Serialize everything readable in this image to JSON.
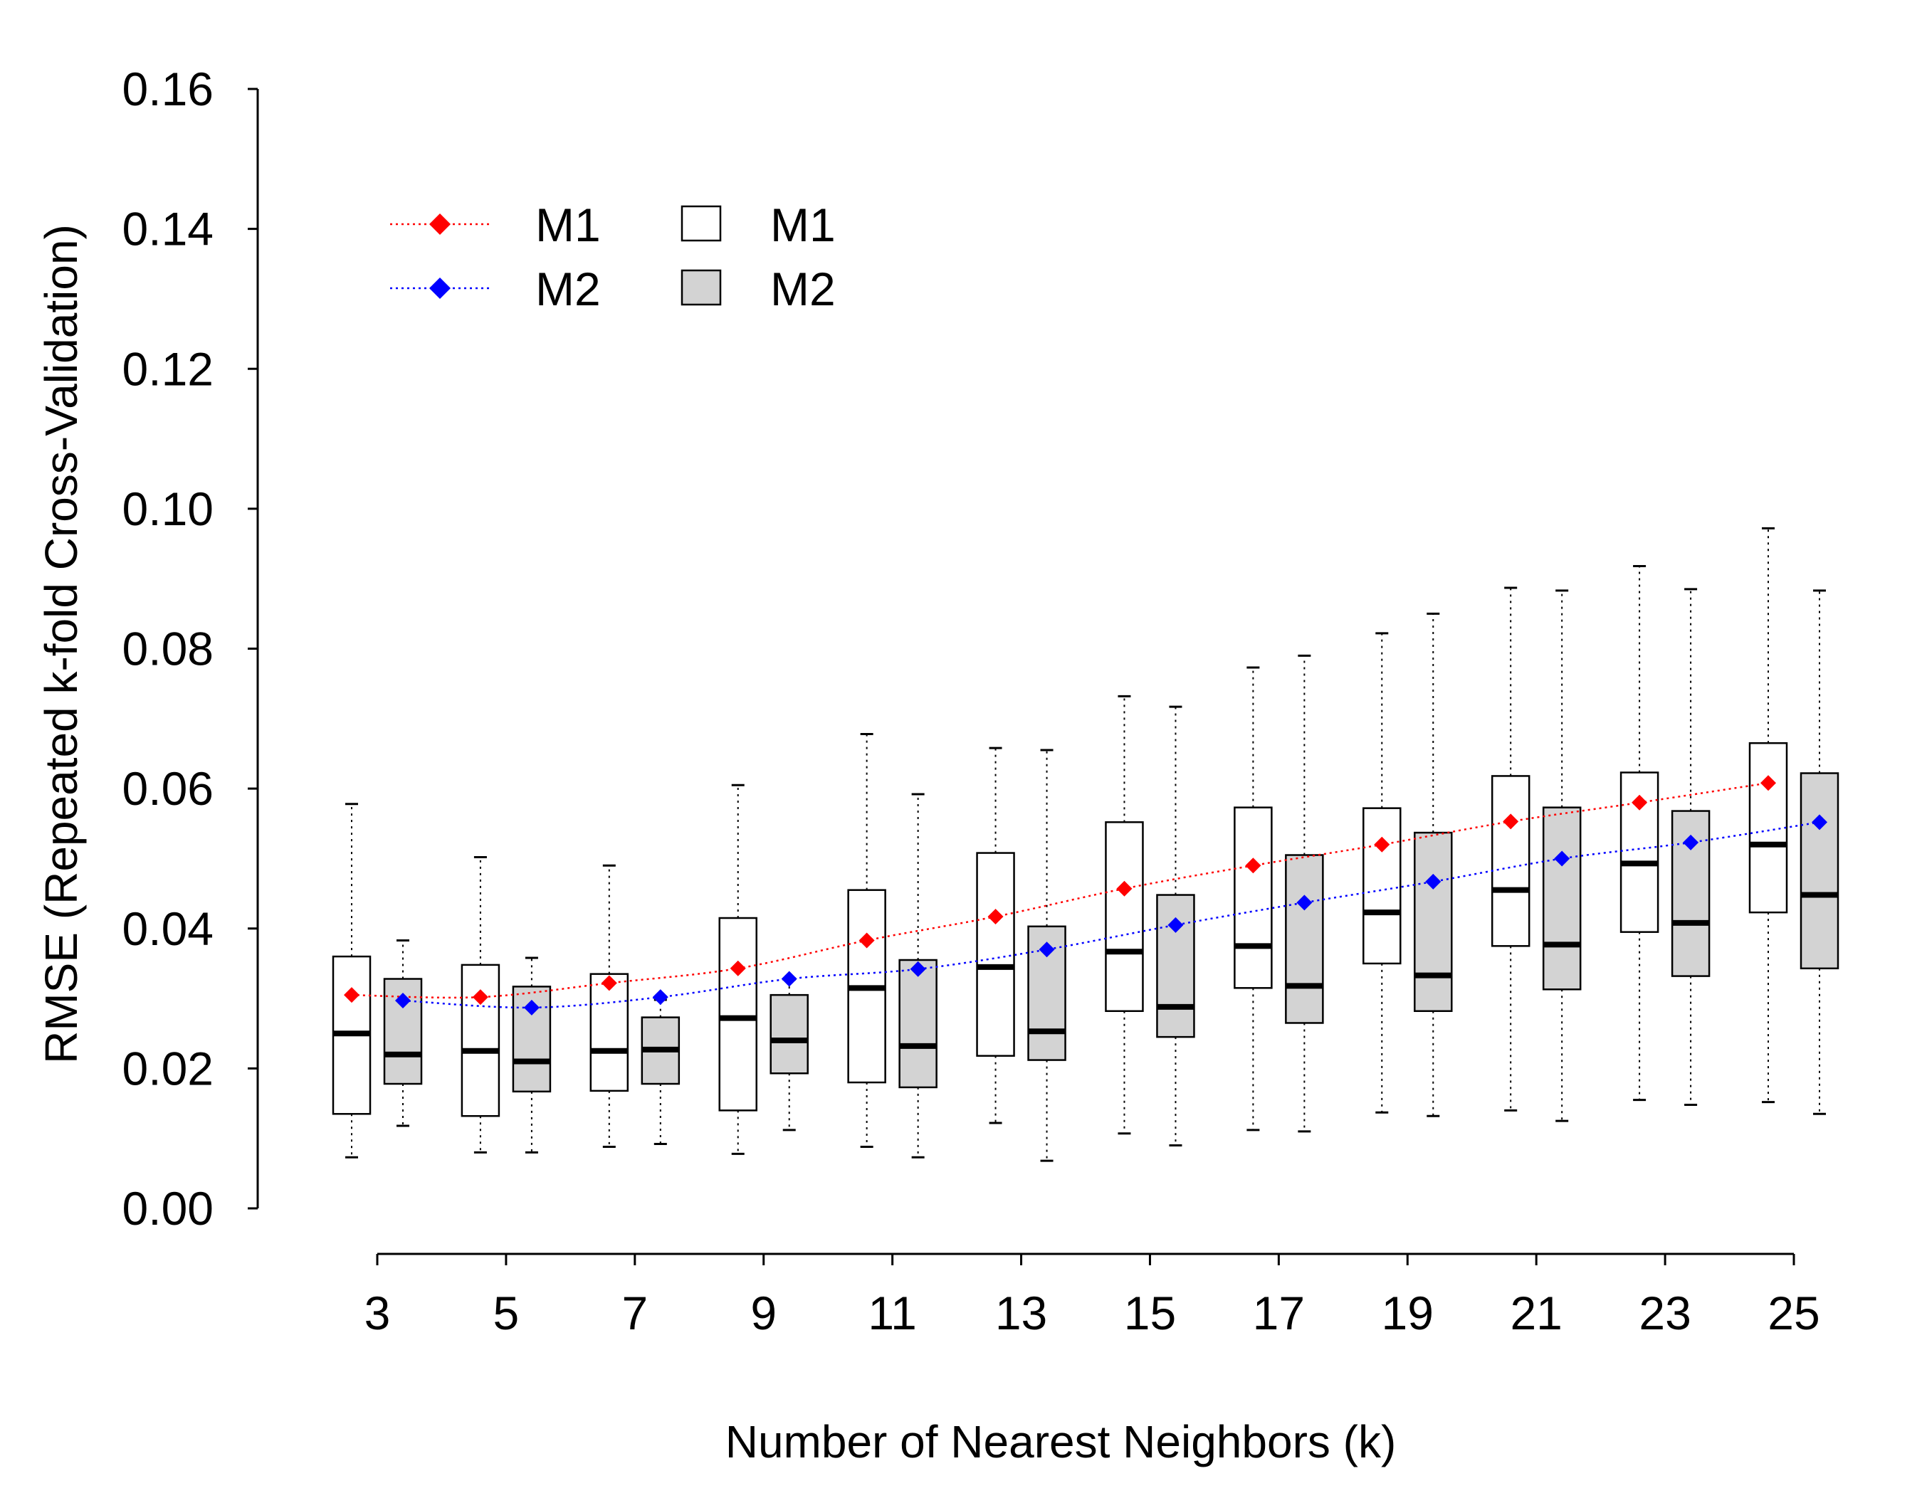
{
  "chart_data": {
    "type": "box",
    "title": "",
    "xlabel": "Number of Nearest Neighbors (k)",
    "ylabel": "RMSE (Repeated k-fold Cross-Validation)",
    "ylim": [
      0,
      0.16
    ],
    "yticks": [
      "0.00",
      "0.02",
      "0.04",
      "0.06",
      "0.08",
      "0.10",
      "0.12",
      "0.14",
      "0.16"
    ],
    "x_categories": [
      "3",
      "5",
      "7",
      "9",
      "11",
      "13",
      "15",
      "17",
      "19",
      "21",
      "23",
      "25"
    ],
    "grid": false,
    "legend_position": "top-left",
    "legend": {
      "lines": [
        {
          "label": "M1",
          "color": "#ff0000"
        },
        {
          "label": "M2",
          "color": "#0000ff"
        }
      ],
      "boxes": [
        {
          "label": "M1",
          "fill": "#ffffff"
        },
        {
          "label": "M2",
          "fill": "#d3d3d3"
        }
      ]
    },
    "box_series": [
      {
        "name": "M1",
        "fill": "#ffffff",
        "boxes": [
          {
            "k": 3,
            "whisker_low": 0.0073,
            "q1": 0.0135,
            "median": 0.025,
            "q3": 0.036,
            "whisker_high": 0.0578
          },
          {
            "k": 5,
            "whisker_low": 0.008,
            "q1": 0.0132,
            "median": 0.0225,
            "q3": 0.0348,
            "whisker_high": 0.0502
          },
          {
            "k": 7,
            "whisker_low": 0.0088,
            "q1": 0.0168,
            "median": 0.0225,
            "q3": 0.0335,
            "whisker_high": 0.049
          },
          {
            "k": 9,
            "whisker_low": 0.0078,
            "q1": 0.014,
            "median": 0.0272,
            "q3": 0.0415,
            "whisker_high": 0.0605
          },
          {
            "k": 11,
            "whisker_low": 0.0088,
            "q1": 0.018,
            "median": 0.0315,
            "q3": 0.0455,
            "whisker_high": 0.0678
          },
          {
            "k": 13,
            "whisker_low": 0.0122,
            "q1": 0.0218,
            "median": 0.0345,
            "q3": 0.0508,
            "whisker_high": 0.0658
          },
          {
            "k": 15,
            "whisker_low": 0.0107,
            "q1": 0.0282,
            "median": 0.0367,
            "q3": 0.0552,
            "whisker_high": 0.0732
          },
          {
            "k": 17,
            "whisker_low": 0.0112,
            "q1": 0.0315,
            "median": 0.0375,
            "q3": 0.0573,
            "whisker_high": 0.0773
          },
          {
            "k": 19,
            "whisker_low": 0.0137,
            "q1": 0.035,
            "median": 0.0423,
            "q3": 0.0572,
            "whisker_high": 0.0822
          },
          {
            "k": 21,
            "whisker_low": 0.014,
            "q1": 0.0375,
            "median": 0.0455,
            "q3": 0.0618,
            "whisker_high": 0.0887
          },
          {
            "k": 23,
            "whisker_low": 0.0155,
            "q1": 0.0395,
            "median": 0.0493,
            "q3": 0.0623,
            "whisker_high": 0.0918
          },
          {
            "k": 25,
            "whisker_low": 0.0152,
            "q1": 0.0423,
            "median": 0.052,
            "q3": 0.0665,
            "whisker_high": 0.0972
          }
        ]
      },
      {
        "name": "M2",
        "fill": "#d3d3d3",
        "boxes": [
          {
            "k": 3,
            "whisker_low": 0.0118,
            "q1": 0.0178,
            "median": 0.022,
            "q3": 0.0328,
            "whisker_high": 0.0383
          },
          {
            "k": 5,
            "whisker_low": 0.008,
            "q1": 0.0167,
            "median": 0.021,
            "q3": 0.0317,
            "whisker_high": 0.0358
          },
          {
            "k": 7,
            "whisker_low": 0.0092,
            "q1": 0.0178,
            "median": 0.0227,
            "q3": 0.0273,
            "whisker_high": 0.0298
          },
          {
            "k": 9,
            "whisker_low": 0.0112,
            "q1": 0.0193,
            "median": 0.024,
            "q3": 0.0305,
            "whisker_high": 0.0327
          },
          {
            "k": 11,
            "whisker_low": 0.0073,
            "q1": 0.0173,
            "median": 0.0232,
            "q3": 0.0355,
            "whisker_high": 0.0592
          },
          {
            "k": 13,
            "whisker_low": 0.0068,
            "q1": 0.0212,
            "median": 0.0253,
            "q3": 0.0403,
            "whisker_high": 0.0655
          },
          {
            "k": 15,
            "whisker_low": 0.009,
            "q1": 0.0245,
            "median": 0.0288,
            "q3": 0.0448,
            "whisker_high": 0.0717
          },
          {
            "k": 17,
            "whisker_low": 0.011,
            "q1": 0.0265,
            "median": 0.0318,
            "q3": 0.0505,
            "whisker_high": 0.079
          },
          {
            "k": 19,
            "whisker_low": 0.0132,
            "q1": 0.0282,
            "median": 0.0333,
            "q3": 0.0537,
            "whisker_high": 0.085
          },
          {
            "k": 21,
            "whisker_low": 0.0125,
            "q1": 0.0313,
            "median": 0.0377,
            "q3": 0.0573,
            "whisker_high": 0.0883
          },
          {
            "k": 23,
            "whisker_low": 0.0148,
            "q1": 0.0332,
            "median": 0.0408,
            "q3": 0.0568,
            "whisker_high": 0.0885
          },
          {
            "k": 25,
            "whisker_low": 0.0135,
            "q1": 0.0343,
            "median": 0.0448,
            "q3": 0.0622,
            "whisker_high": 0.0883
          }
        ]
      }
    ],
    "line_series": [
      {
        "name": "M1",
        "color": "#ff0000",
        "values": [
          0.0305,
          0.0302,
          0.0322,
          0.0343,
          0.0383,
          0.0417,
          0.0457,
          0.049,
          0.052,
          0.0553,
          0.058,
          0.0608
        ]
      },
      {
        "name": "M2",
        "color": "#0000ff",
        "values": [
          0.0297,
          0.0287,
          0.0302,
          0.0328,
          0.0342,
          0.037,
          0.0405,
          0.0437,
          0.0467,
          0.05,
          0.0523,
          0.0552
        ]
      }
    ]
  }
}
